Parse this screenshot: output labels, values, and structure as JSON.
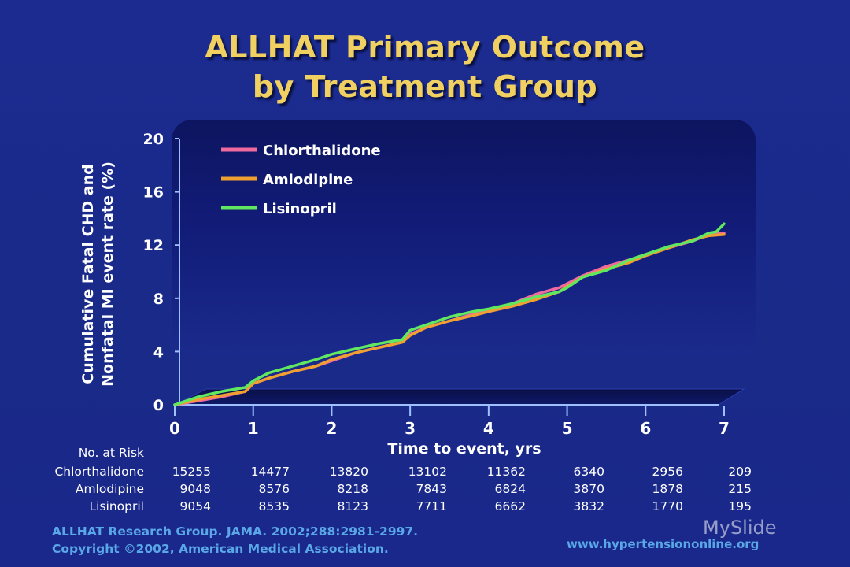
{
  "slide": {
    "title_line1": "ALLHAT Primary Outcome",
    "title_line2": "by Treatment Group",
    "citation_line1": "ALLHAT Research Group. JAMA. 2002;288:2981-2997.",
    "citation_line2": "Copyright ©2002, American Medical Association.",
    "website": "www.hypertensiononline.org",
    "watermark": "MySlide"
  },
  "colors": {
    "background": "#1a2a8c",
    "title": "#f0d060",
    "citation": "#5aa7e8",
    "Chlorthalidone": "#f06aa0",
    "Amlodipine": "#f0a030",
    "Lisinopril": "#60e860"
  },
  "chart_data": {
    "type": "line",
    "title": "ALLHAT Primary Outcome by Treatment Group",
    "ylabel_line1": "Cumulative Fatal CHD and",
    "ylabel_line2": "Nonfatal MI event rate (%)",
    "xlabel": "Time to event, yrs",
    "xlim": [
      0,
      7
    ],
    "ylim": [
      0,
      20
    ],
    "xticks": [
      0,
      1,
      2,
      3,
      4,
      5,
      6,
      7
    ],
    "yticks": [
      0,
      4,
      8,
      12,
      16,
      20
    ],
    "legend_position": "top-left",
    "series": [
      {
        "name": "Chlorthalidone",
        "x": [
          0,
          0.3,
          0.6,
          0.9,
          1.0,
          1.2,
          1.5,
          1.8,
          2.0,
          2.3,
          2.6,
          2.9,
          3.0,
          3.2,
          3.5,
          3.8,
          4.0,
          4.3,
          4.6,
          4.9,
          5.0,
          5.2,
          5.5,
          5.8,
          6.0,
          6.3,
          6.6,
          6.8,
          7.0
        ],
        "y": [
          0,
          0.3,
          0.6,
          1.0,
          1.6,
          2.0,
          2.5,
          2.9,
          3.3,
          3.9,
          4.3,
          4.7,
          5.3,
          5.8,
          6.3,
          6.8,
          7.1,
          7.6,
          8.3,
          8.8,
          9.1,
          9.7,
          10.4,
          10.9,
          11.3,
          11.8,
          12.3,
          12.8,
          12.9
        ]
      },
      {
        "name": "Amlodipine",
        "x": [
          0,
          0.3,
          0.6,
          0.9,
          1.0,
          1.2,
          1.5,
          1.8,
          2.0,
          2.3,
          2.6,
          2.9,
          3.0,
          3.2,
          3.5,
          3.8,
          4.0,
          4.3,
          4.6,
          4.9,
          5.0,
          5.2,
          5.5,
          5.8,
          6.0,
          6.3,
          6.6,
          6.8,
          7.0
        ],
        "y": [
          0,
          0.4,
          0.7,
          1.0,
          1.6,
          2.0,
          2.5,
          2.9,
          3.4,
          3.9,
          4.3,
          4.7,
          5.2,
          5.8,
          6.3,
          6.7,
          7.0,
          7.4,
          7.9,
          8.5,
          8.9,
          9.6,
          10.2,
          10.7,
          11.2,
          11.8,
          12.4,
          12.7,
          12.8
        ]
      },
      {
        "name": "Lisinopril",
        "x": [
          0,
          0.3,
          0.6,
          0.9,
          1.0,
          1.2,
          1.5,
          1.8,
          2.0,
          2.3,
          2.6,
          2.9,
          3.0,
          3.2,
          3.5,
          3.8,
          4.0,
          4.3,
          4.6,
          4.9,
          5.0,
          5.2,
          5.5,
          5.8,
          6.0,
          6.3,
          6.6,
          6.8,
          6.9,
          7.0
        ],
        "y": [
          0,
          0.6,
          1.0,
          1.3,
          1.8,
          2.4,
          2.9,
          3.4,
          3.8,
          4.2,
          4.6,
          4.9,
          5.6,
          6.0,
          6.6,
          7.0,
          7.2,
          7.6,
          8.1,
          8.5,
          8.8,
          9.6,
          10.1,
          10.9,
          11.3,
          11.9,
          12.3,
          12.9,
          13.0,
          13.6
        ]
      }
    ],
    "at_risk": {
      "label": "No. at Risk",
      "rows": [
        {
          "group": "Chlorthalidone",
          "values": [
            "15255",
            "14477",
            "13820",
            "13102",
            "11362",
            "6340",
            "2956",
            "209"
          ]
        },
        {
          "group": "Amlodipine",
          "values": [
            "9048",
            "8576",
            "8218",
            "7843",
            "6824",
            "3870",
            "1878",
            "215"
          ]
        },
        {
          "group": "Lisinopril",
          "values": [
            "9054",
            "8535",
            "8123",
            "7711",
            "6662",
            "3832",
            "1770",
            "195"
          ]
        }
      ]
    }
  }
}
